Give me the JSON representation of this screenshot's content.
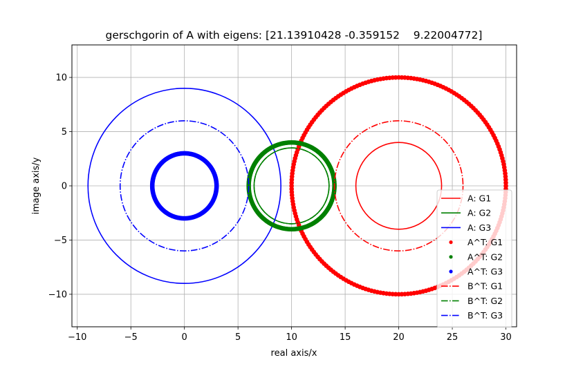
{
  "chart_data": {
    "type": "line",
    "title": "gerschgorin of A with eigens: [21.13910428 -0.359152    9.22004772]",
    "xlabel": "real axis/x",
    "ylabel": "image axis/y",
    "xlim": [
      -10.5,
      31.0
    ],
    "ylim": [
      -13.0,
      13.0
    ],
    "x_ticks": [
      -10,
      -5,
      0,
      5,
      10,
      15,
      20,
      25,
      30
    ],
    "y_ticks": [
      -10,
      -5,
      0,
      5,
      10
    ],
    "x_tick_labels": [
      "−10",
      "−5",
      "0",
      "5",
      "10",
      "15",
      "20",
      "25",
      "30"
    ],
    "y_tick_labels": [
      "−10",
      "−5",
      "0",
      "5",
      "10"
    ],
    "grid": true,
    "legend_position": "lower-right",
    "series": [
      {
        "name": "A: G1",
        "style": "solid",
        "color": "#ff0000",
        "center": [
          20,
          0
        ],
        "radius": 4
      },
      {
        "name": "A: G2",
        "style": "solid",
        "color": "#008000",
        "center": [
          10,
          0
        ],
        "radius": 3.5
      },
      {
        "name": "A: G3",
        "style": "solid",
        "color": "#0000ff",
        "center": [
          0,
          0
        ],
        "radius": 9
      },
      {
        "name": "A^T: G1",
        "style": "dots",
        "color": "#ff0000",
        "center": [
          20,
          0
        ],
        "radius": 10
      },
      {
        "name": "A^T: G2",
        "style": "dots",
        "color": "#008000",
        "center": [
          10,
          0
        ],
        "radius": 4
      },
      {
        "name": "A^T: G3",
        "style": "dots",
        "color": "#0000ff",
        "center": [
          0,
          0
        ],
        "radius": 3
      },
      {
        "name": "B^T: G1",
        "style": "dashdot",
        "color": "#ff0000",
        "center": [
          20,
          0
        ],
        "radius": 6
      },
      {
        "name": "B^T: G2",
        "style": "dashdot",
        "color": "#008000",
        "center": [
          10,
          0
        ],
        "radius": 3.5
      },
      {
        "name": "B^T: G3",
        "style": "dashdot",
        "color": "#0000ff",
        "center": [
          0,
          0
        ],
        "radius": 6
      }
    ]
  }
}
